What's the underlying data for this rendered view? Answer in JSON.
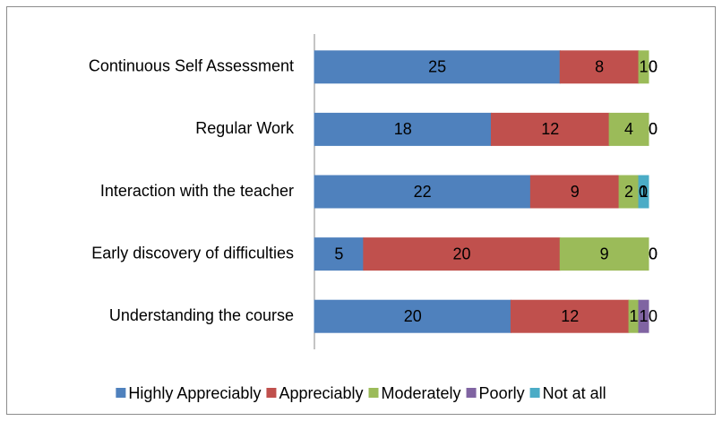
{
  "chart_data": {
    "type": "stacked_bar_horizontal",
    "categories": [
      "Continuous Self Assessment",
      "Regular Work",
      "Interaction with the teacher",
      "Early discovery of difficulties",
      "Understanding the course"
    ],
    "series": [
      {
        "name": "Highly Appreciably",
        "color": "#4f81bd",
        "values": [
          25,
          18,
          22,
          5,
          20
        ]
      },
      {
        "name": "Appreciably",
        "color": "#c0504d",
        "values": [
          8,
          12,
          9,
          20,
          12
        ]
      },
      {
        "name": "Moderately",
        "color": "#9bbb59",
        "values": [
          1,
          4,
          2,
          9,
          1
        ]
      },
      {
        "name": "Poorly",
        "color": "#8064a2",
        "values": [
          0,
          0,
          0,
          0,
          1
        ]
      },
      {
        "name": "Not at all",
        "color": "#4bacc6",
        "values": [
          0,
          0,
          1,
          0,
          0
        ]
      }
    ],
    "xlim": [
      0,
      34
    ],
    "legend": "bottom"
  }
}
